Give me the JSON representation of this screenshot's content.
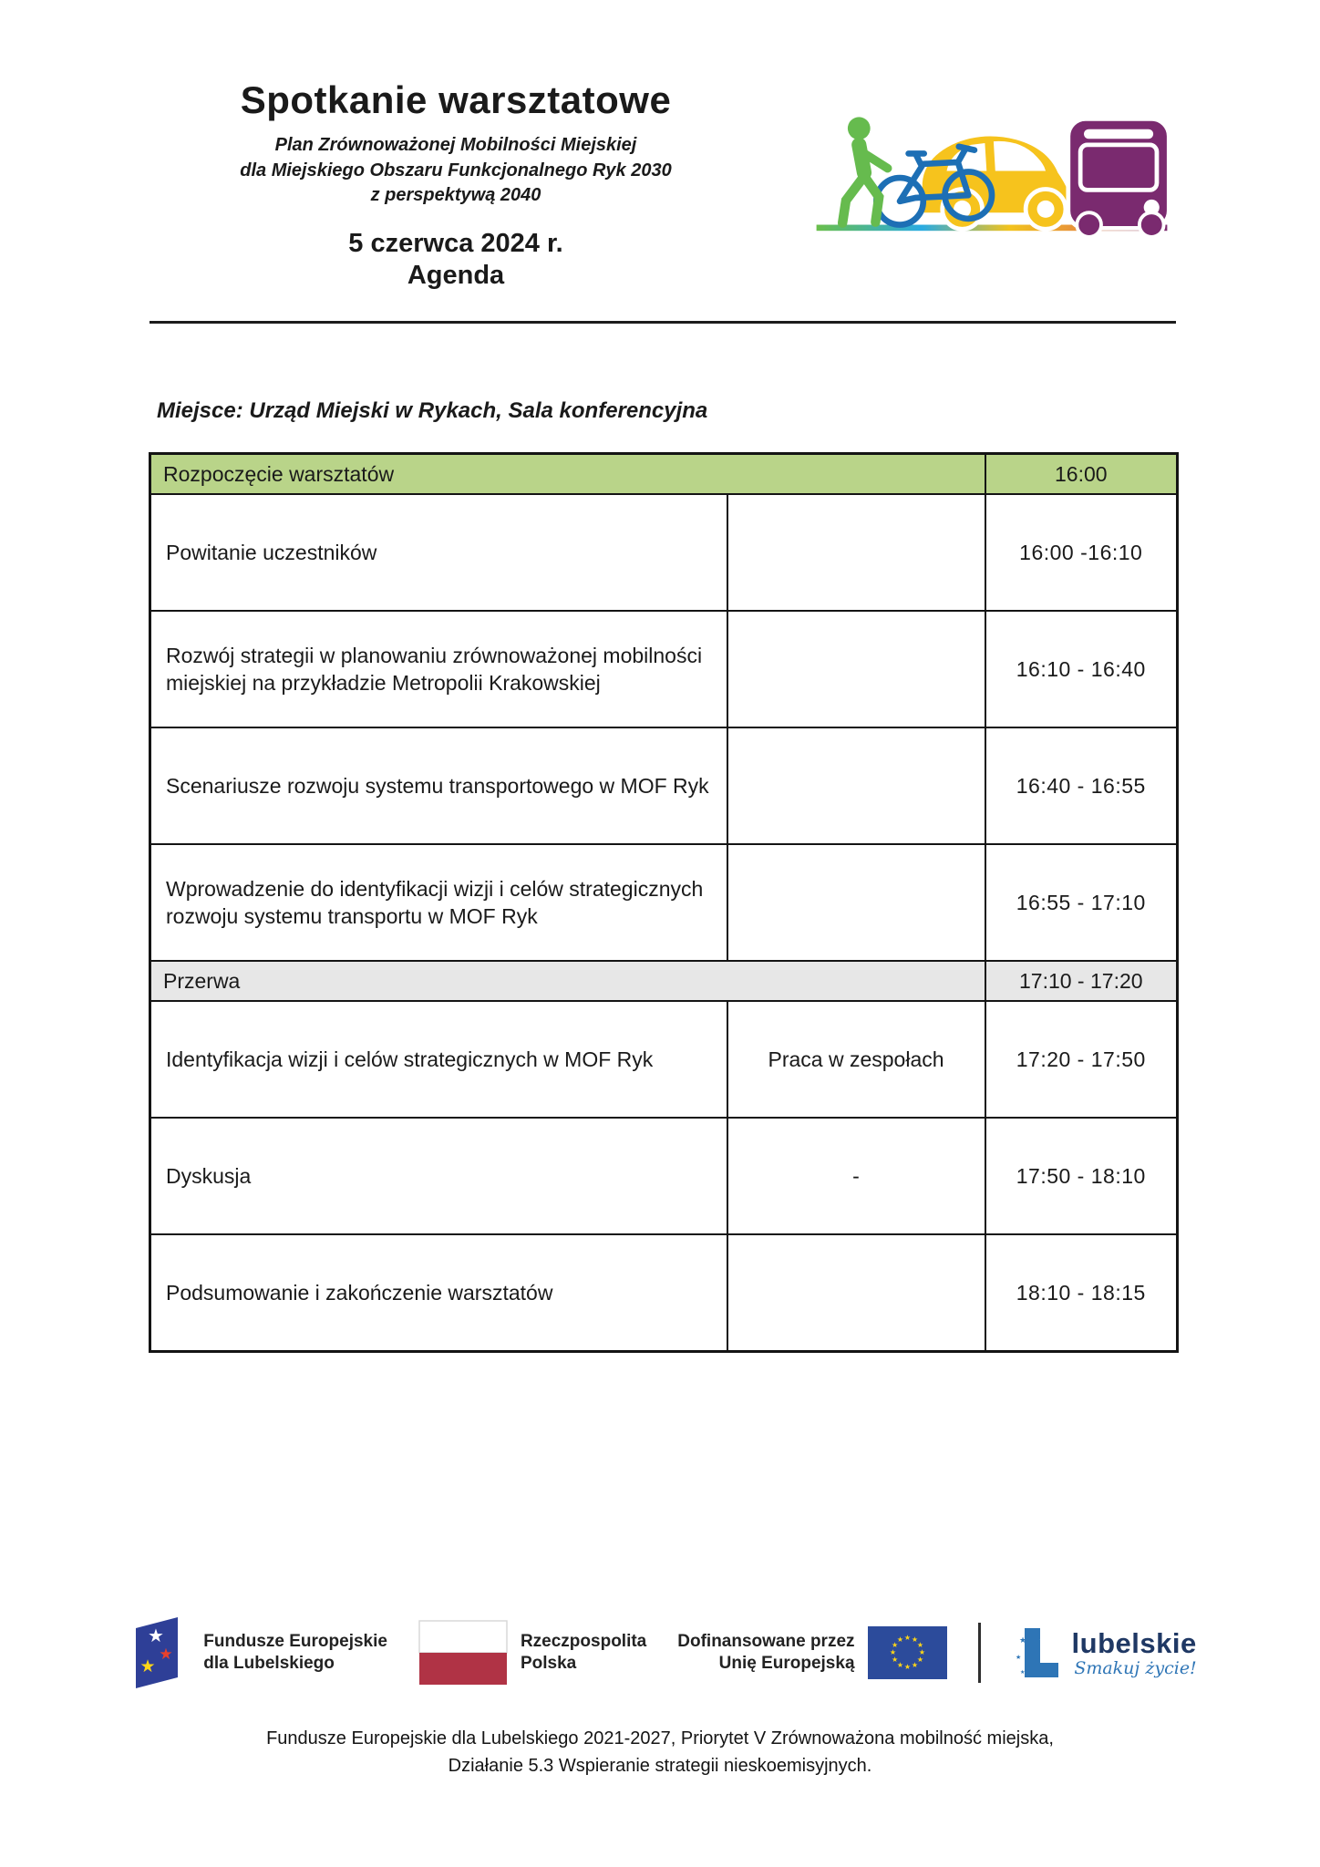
{
  "header": {
    "title": "Spotkanie warsztatowe",
    "subtitle_line1": "Plan Zrównoważonej Mobilności Miejskiej",
    "subtitle_line2": "dla Miejskiego Obszaru Funkcjonalnego Ryk 2030",
    "subtitle_line3": "z perspektywą 2040",
    "date": "5 czerwca 2024 r.",
    "agenda_label": "Agenda"
  },
  "location_line": "Miejsce: Urząd Miejski w Rykach, Sala konferencyjna",
  "table": {
    "rows": [
      {
        "type": "section",
        "bg": "green",
        "title": "Rozpoczęcie warsztatów",
        "time": "16:00"
      },
      {
        "type": "item",
        "title": "Powitanie uczestników",
        "middle": "",
        "time": "16:00 -16:10"
      },
      {
        "type": "item",
        "title": "Rozwój strategii w planowaniu zrównoważonej mobilności miejskiej na przykładzie Metropolii Krakowskiej",
        "middle": "",
        "time": "16:10 - 16:40"
      },
      {
        "type": "item",
        "title": "Scenariusze rozwoju systemu transportowego w MOF Ryk",
        "middle": "",
        "time": "16:40 - 16:55"
      },
      {
        "type": "item",
        "title": "Wprowadzenie do identyfikacji wizji i celów strategicznych rozwoju systemu transportu w MOF Ryk",
        "middle": "",
        "time": "16:55 - 17:10"
      },
      {
        "type": "section",
        "bg": "gray",
        "title": "Przerwa",
        "time": "17:10 - 17:20"
      },
      {
        "type": "item",
        "title": "Identyfikacja wizji i celów strategicznych w MOF Ryk",
        "middle": "Praca w zespołach",
        "time": "17:20 - 17:50"
      },
      {
        "type": "item",
        "title": "Dyskusja",
        "middle": "-",
        "time": "17:50 - 18:10"
      },
      {
        "type": "item",
        "title": "Podsumowanie i zakończenie warsztatów",
        "middle": "",
        "time": "18:10 - 18:15"
      }
    ]
  },
  "footer": {
    "fe_line1": "Fundusze Europejskie",
    "fe_line2": "dla Lubelskiego",
    "rp_line1": "Rzeczpospolita",
    "rp_line2": "Polska",
    "eu_line1": "Dofinansowane przez",
    "eu_line2": "Unię Europejską",
    "lubelskie_name": "lubelskie",
    "lubelskie_tagline": "Smakuj życie!",
    "note_line1": "Fundusze Europejskie dla Lubelskiego 2021-2027, Priorytet V Zrównoważona mobilność miejska,",
    "note_line2": "Działanie 5.3 Wspieranie strategii nieskoemisyjnych."
  },
  "colors": {
    "table_header_bg": "#b9d489",
    "break_row_bg": "#e7e7e7",
    "pedestrian_green": "#66bb4e",
    "bike_blue": "#1d6fb5",
    "car_yellow": "#f6c31d",
    "bus_purple": "#7a2a6f",
    "eu_flag_blue": "#2c4b9b",
    "eu_star_yellow": "#ffd617",
    "poland_red": "#b03345",
    "fe_logo_blue": "#2e3f97",
    "lubelskie_blue": "#2e75b6"
  }
}
